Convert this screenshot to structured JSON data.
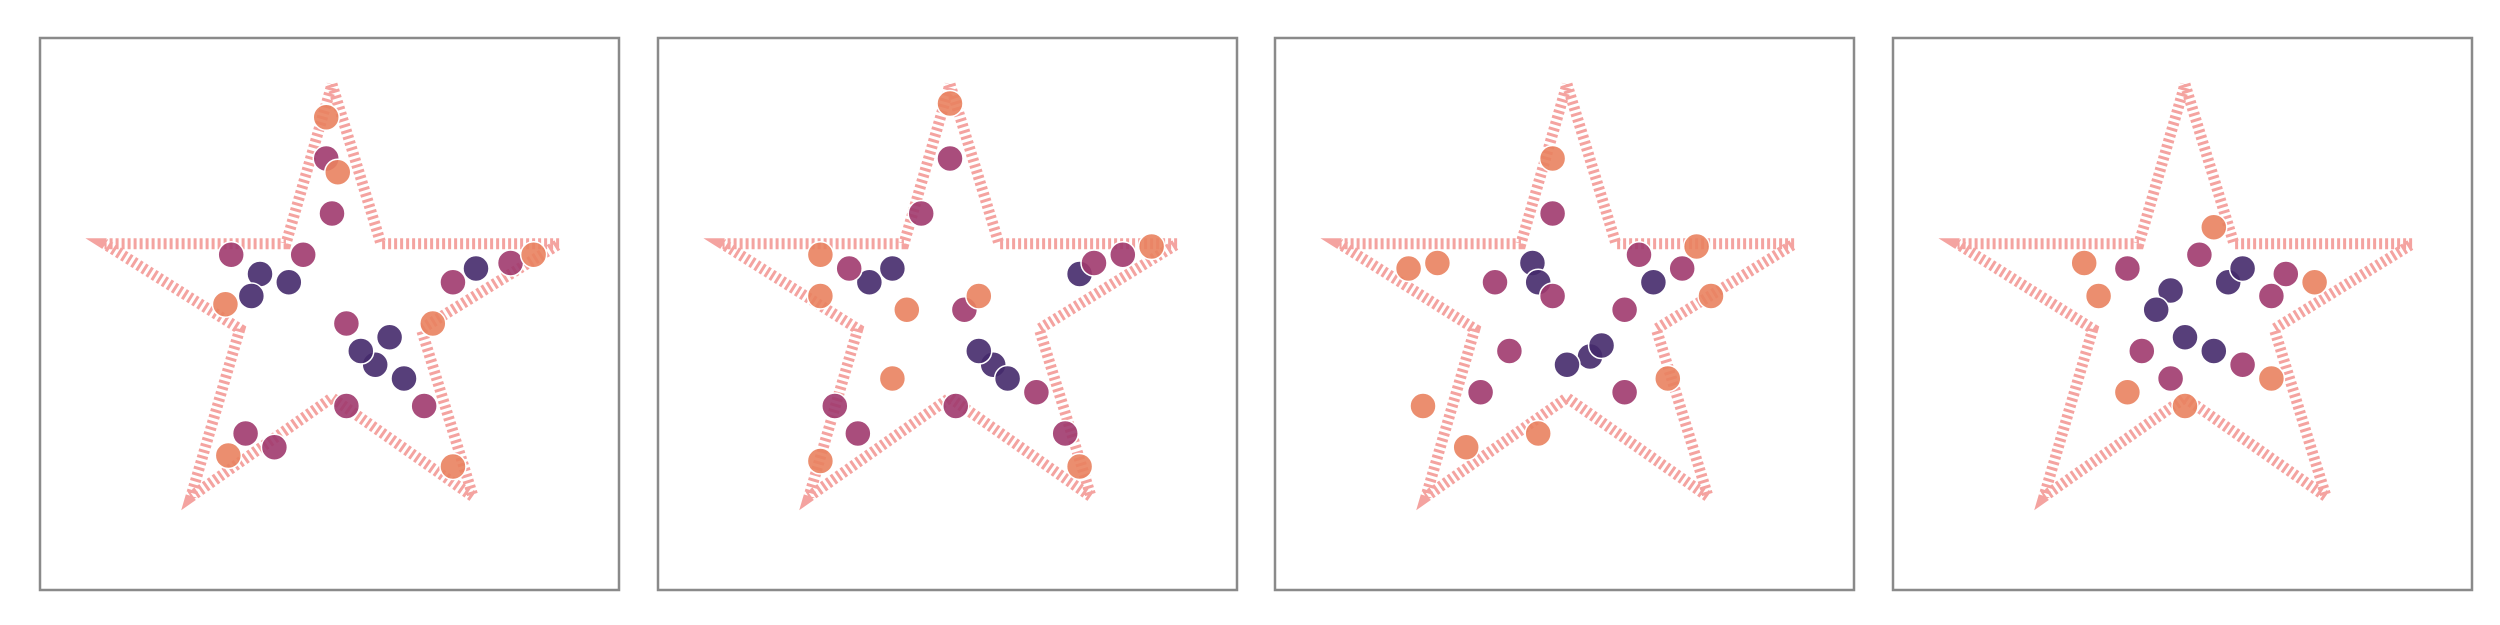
{
  "chart_data": [
    {
      "type": "scatter",
      "xlim": [
        -1,
        1
      ],
      "ylim": [
        -1,
        1
      ],
      "outline": {
        "color": "#f4a3a0",
        "x": [
          0,
          0.17,
          0.79,
          0.31,
          0.49,
          0,
          -0.49,
          -0.32,
          -0.79,
          -0.16,
          0
        ],
        "y": [
          0.77,
          0.19,
          0.19,
          -0.12,
          -0.73,
          -0.37,
          -0.73,
          -0.12,
          0.19,
          0.19,
          0.77
        ]
      },
      "series": [
        {
          "color": "#452a6b",
          "x": [
            -0.25,
            -0.15,
            0.15,
            0.25,
            0.1,
            0.2,
            0.5,
            -0.28
          ],
          "y": [
            0.08,
            0.05,
            -0.25,
            -0.3,
            -0.2,
            -0.15,
            0.1,
            0
          ]
        },
        {
          "color": "#a03a6e",
          "x": [
            -0.02,
            0,
            -0.35,
            -0.1,
            0.05,
            0.32,
            0.05,
            0.62,
            0.42,
            -0.3,
            -0.2
          ],
          "y": [
            0.5,
            0.3,
            0.15,
            0.15,
            -0.1,
            -0.4,
            -0.4,
            0.12,
            0.05,
            -0.5,
            -0.55
          ]
        },
        {
          "color": "#e9825f",
          "x": [
            -0.02,
            0.02,
            0.7,
            -0.36,
            0.42,
            -0.37,
            0.35
          ],
          "y": [
            0.65,
            0.45,
            0.15,
            -0.58,
            -0.62,
            -0.03,
            -0.1
          ]
        }
      ]
    },
    {
      "type": "scatter",
      "xlim": [
        -1,
        1
      ],
      "ylim": [
        -1,
        1
      ],
      "outline": {
        "color": "#f4a3a0",
        "x": [
          0,
          0.17,
          0.79,
          0.31,
          0.49,
          0,
          -0.49,
          -0.32,
          -0.79,
          -0.16,
          0
        ],
        "y": [
          0.77,
          0.19,
          0.19,
          -0.12,
          -0.73,
          -0.37,
          -0.73,
          -0.12,
          0.19,
          0.19,
          0.77
        ]
      },
      "series": [
        {
          "color": "#452a6b",
          "x": [
            -0.28,
            -0.2,
            0.15,
            0.2,
            0.1,
            0.45
          ],
          "y": [
            0.05,
            0.1,
            -0.25,
            -0.3,
            -0.2,
            0.08
          ]
        },
        {
          "color": "#a03a6e",
          "x": [
            -0.1,
            0,
            -0.35,
            0.05,
            0.3,
            0.5,
            -0.4,
            -0.32,
            0.4,
            0.02,
            0.6
          ],
          "y": [
            0.3,
            0.5,
            0.1,
            -0.05,
            -0.35,
            0.12,
            -0.4,
            -0.5,
            -0.5,
            -0.4,
            0.15
          ]
        },
        {
          "color": "#e9825f",
          "x": [
            0,
            -0.45,
            -0.45,
            -0.2,
            0.1,
            0.45,
            -0.45,
            0.7,
            -0.15
          ],
          "y": [
            0.7,
            0,
            0.15,
            -0.3,
            0,
            -0.62,
            -0.6,
            0.18,
            -0.05
          ]
        }
      ]
    },
    {
      "type": "scatter",
      "xlim": [
        -1,
        1
      ],
      "ylim": [
        -1,
        1
      ],
      "outline": {
        "color": "#f4a3a0",
        "x": [
          0,
          0.17,
          0.79,
          0.31,
          0.49,
          0,
          -0.49,
          -0.32,
          -0.79,
          -0.16,
          0
        ],
        "y": [
          0.77,
          0.19,
          0.19,
          -0.12,
          -0.73,
          -0.37,
          -0.73,
          -0.12,
          0.19,
          0.19,
          0.77
        ]
      },
      "series": [
        {
          "color": "#452a6b",
          "x": [
            0.08,
            0.12,
            -0.12,
            0.3,
            0,
            -0.1
          ],
          "y": [
            -0.22,
            -0.18,
            0.12,
            0.05,
            -0.25,
            0.05
          ]
        },
        {
          "color": "#a03a6e",
          "x": [
            -0.05,
            -0.25,
            0.4,
            0.2,
            -0.2,
            0.2,
            -0.05,
            0.25,
            -0.3
          ],
          "y": [
            0.3,
            0.05,
            0.1,
            -0.05,
            -0.2,
            -0.35,
            0,
            0.15,
            -0.35
          ]
        },
        {
          "color": "#e9825f",
          "x": [
            -0.05,
            -0.45,
            -0.35,
            0.5,
            -0.5,
            0.35,
            -0.1,
            0.45,
            -0.55
          ],
          "y": [
            0.5,
            0.12,
            -0.55,
            0,
            -0.4,
            -0.3,
            -0.5,
            0.18,
            0.1
          ]
        }
      ]
    },
    {
      "type": "scatter",
      "xlim": [
        -1,
        1
      ],
      "ylim": [
        -1,
        1
      ],
      "outline": {
        "color": "#f4a3a0",
        "x": [
          0,
          0.17,
          0.79,
          0.31,
          0.49,
          0,
          -0.49,
          -0.32,
          -0.79,
          -0.16,
          0
        ],
        "y": [
          0.77,
          0.19,
          0.19,
          -0.12,
          -0.73,
          -0.37,
          -0.73,
          -0.12,
          0.19,
          0.19,
          0.77
        ]
      },
      "series": [
        {
          "color": "#452a6b",
          "x": [
            -0.05,
            0.15,
            0,
            0.2,
            -0.1,
            0.1
          ],
          "y": [
            0.02,
            0.05,
            -0.15,
            0.1,
            -0.05,
            -0.2
          ]
        },
        {
          "color": "#a03a6e",
          "x": [
            -0.2,
            0.3,
            0.05,
            -0.15,
            0.2,
            0.35,
            -0.05
          ],
          "y": [
            0.1,
            0,
            0.15,
            -0.2,
            -0.25,
            0.08,
            -0.3
          ]
        },
        {
          "color": "#e9825f",
          "x": [
            -0.35,
            0.1,
            0.45,
            -0.2,
            0.3,
            -0.3,
            0
          ],
          "y": [
            0.12,
            0.25,
            0.05,
            -0.35,
            -0.3,
            0,
            -0.4
          ]
        }
      ]
    }
  ]
}
